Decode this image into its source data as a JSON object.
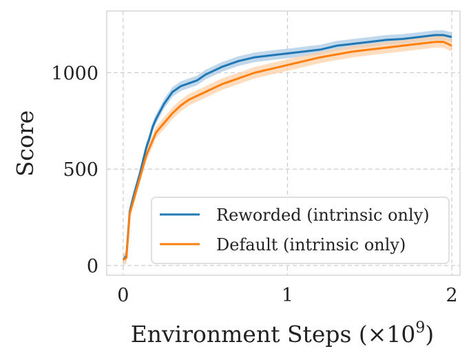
{
  "chart_data": {
    "type": "line",
    "title": "",
    "xlabel": "Environment Steps (×10",
    "xlabel_sup": "9",
    "xlabel_close": ")",
    "ylabel": "Score",
    "xlim": [
      -0.1,
      2.05
    ],
    "ylim": [
      -50,
      1320
    ],
    "xticks": [
      0,
      1,
      2
    ],
    "xtick_labels": [
      "0",
      "1",
      "2"
    ],
    "yticks": [
      0,
      500,
      1000
    ],
    "ytick_labels": [
      "0",
      "500",
      "1000"
    ],
    "grid": true,
    "legend_position": "lower-right",
    "series": [
      {
        "name": "Reworded (intrinsic only)",
        "color": "#1f77b4",
        "band_color": "#a6c8e4",
        "band": 25,
        "x": [
          0,
          0.02,
          0.04,
          0.06,
          0.08,
          0.1,
          0.12,
          0.14,
          0.16,
          0.18,
          0.2,
          0.25,
          0.3,
          0.35,
          0.4,
          0.45,
          0.5,
          0.55,
          0.6,
          0.7,
          0.8,
          0.9,
          1.0,
          1.1,
          1.2,
          1.3,
          1.4,
          1.5,
          1.6,
          1.7,
          1.75,
          1.8,
          1.85,
          1.9,
          1.95,
          2.0
        ],
        "y": [
          30,
          50,
          280,
          350,
          410,
          470,
          540,
          610,
          660,
          720,
          760,
          840,
          900,
          930,
          945,
          960,
          990,
          1010,
          1030,
          1060,
          1080,
          1090,
          1100,
          1110,
          1120,
          1140,
          1150,
          1160,
          1170,
          1175,
          1180,
          1185,
          1190,
          1195,
          1195,
          1185
        ]
      },
      {
        "name": "Default (intrinsic only)",
        "color": "#ff7f0e",
        "band_color": "#ffcfa3",
        "band": 30,
        "x": [
          0,
          0.02,
          0.04,
          0.06,
          0.08,
          0.1,
          0.12,
          0.14,
          0.16,
          0.18,
          0.2,
          0.25,
          0.3,
          0.35,
          0.4,
          0.45,
          0.5,
          0.55,
          0.6,
          0.7,
          0.8,
          0.9,
          1.0,
          1.1,
          1.2,
          1.3,
          1.4,
          1.5,
          1.6,
          1.7,
          1.75,
          1.8,
          1.85,
          1.9,
          1.95,
          2.0
        ],
        "y": [
          30,
          40,
          270,
          330,
          390,
          450,
          510,
          570,
          610,
          650,
          690,
          740,
          790,
          830,
          860,
          880,
          900,
          920,
          940,
          970,
          1000,
          1020,
          1040,
          1060,
          1080,
          1095,
          1110,
          1120,
          1130,
          1140,
          1145,
          1150,
          1155,
          1160,
          1160,
          1140
        ]
      }
    ]
  }
}
